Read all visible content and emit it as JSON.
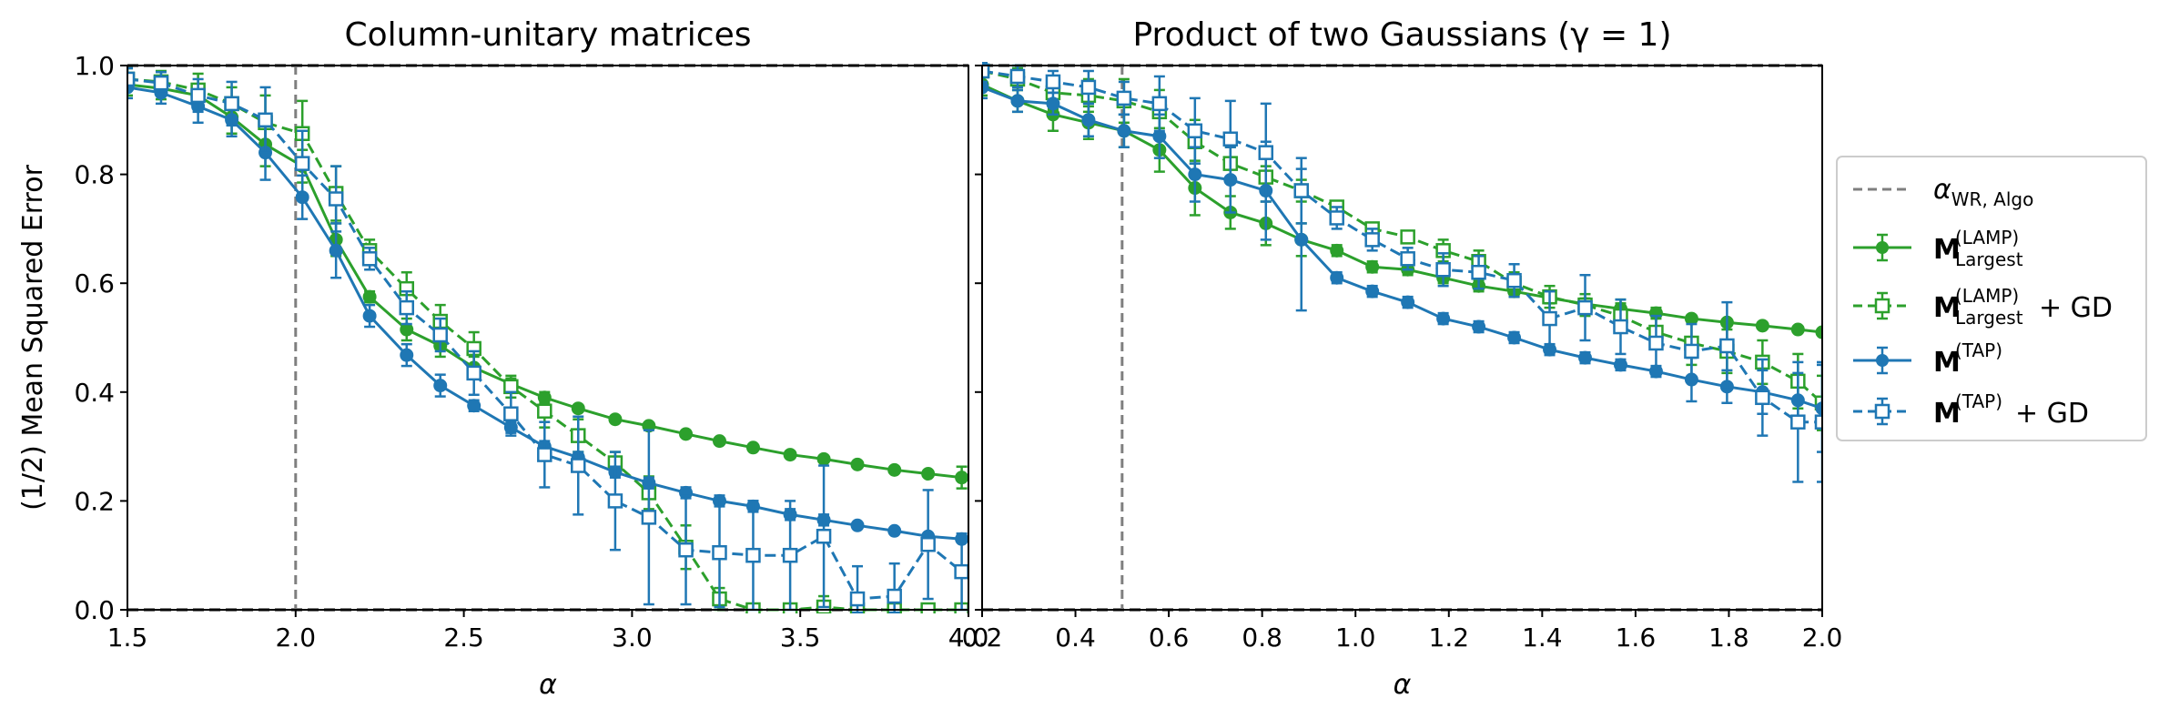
{
  "colors": {
    "lamp": "#2ca02c",
    "tap": "#1f77b4",
    "threshold": "#7f7f7f",
    "reference": "#000000"
  },
  "legend": {
    "threshold": {
      "main": "α",
      "sub": "WR, Algo"
    },
    "items": [
      {
        "series": "lamp",
        "base": "M",
        "sup": "(LAMP)",
        "sub": "Largest",
        "suffix": ""
      },
      {
        "series": "lamp_gd",
        "base": "M",
        "sup": "(LAMP)",
        "sub": "Largest",
        "suffix": " + GD"
      },
      {
        "series": "tap",
        "base": "M",
        "sup": "(TAP)",
        "sub": "",
        "suffix": ""
      },
      {
        "series": "tap_gd",
        "base": "M",
        "sup": "(TAP)",
        "sub": "",
        "suffix": " + GD"
      }
    ]
  },
  "chart_data": [
    {
      "type": "line",
      "title": "Column-unitary matrices",
      "xlabel": "α",
      "ylabel": "(1/2) Mean Squared Error",
      "xlim": [
        1.5,
        4.0
      ],
      "ylim": [
        0.0,
        1.0
      ],
      "xticks": [
        "1.5",
        "2.0",
        "2.5",
        "3.0",
        "3.5",
        "4.0"
      ],
      "xtick_values": [
        1.5,
        2.0,
        2.5,
        3.0,
        3.5,
        4.0
      ],
      "yticks": [
        "0.0",
        "0.2",
        "0.4",
        "0.6",
        "0.8",
        "1.0"
      ],
      "ytick_values": [
        0.0,
        0.2,
        0.4,
        0.6,
        0.8,
        1.0
      ],
      "threshold_alpha": 2.0,
      "reference_lines": [
        0.0,
        1.0
      ],
      "series": [
        {
          "id": "lamp",
          "style": "solid-circle",
          "x": [
            1.5,
            1.6,
            1.71,
            1.81,
            1.91,
            2.02,
            2.12,
            2.22,
            2.33,
            2.43,
            2.53,
            2.64,
            2.74,
            2.84,
            2.95,
            3.05,
            3.16,
            3.26,
            3.36,
            3.47,
            3.57,
            3.67,
            3.78,
            3.88,
            3.98
          ],
          "y": [
            0.965,
            0.958,
            0.945,
            0.905,
            0.855,
            0.815,
            0.68,
            0.575,
            0.515,
            0.485,
            0.445,
            0.415,
            0.39,
            0.37,
            0.35,
            0.338,
            0.323,
            0.31,
            0.298,
            0.285,
            0.277,
            0.267,
            0.257,
            0.25,
            0.243
          ],
          "err": [
            0.02,
            0.02,
            0.02,
            0.03,
            0.04,
            0.03,
            0.03,
            0.01,
            0.02,
            0.02,
            0.02,
            0.01,
            0.01,
            0.005,
            0.005,
            0.005,
            0.005,
            0.005,
            0.005,
            0.005,
            0.005,
            0.005,
            0.005,
            0.005,
            0.02
          ]
        },
        {
          "id": "lamp_gd",
          "style": "dashed-square",
          "x": [
            1.5,
            1.6,
            1.71,
            1.81,
            1.91,
            2.02,
            2.12,
            2.22,
            2.33,
            2.43,
            2.53,
            2.64,
            2.74,
            2.84,
            2.95,
            3.05,
            3.16,
            3.26,
            3.36,
            3.47,
            3.57,
            3.67,
            3.78,
            3.88,
            3.98
          ],
          "y": [
            0.975,
            0.97,
            0.955,
            0.93,
            0.895,
            0.875,
            0.765,
            0.66,
            0.59,
            0.53,
            0.48,
            0.41,
            0.365,
            0.32,
            0.27,
            0.215,
            0.115,
            0.02,
            0.0,
            0.0,
            0.005,
            0.0,
            0.0,
            0.0,
            0.0
          ],
          "err": [
            0.02,
            0.02,
            0.03,
            0.03,
            0.05,
            0.06,
            0.05,
            0.02,
            0.03,
            0.03,
            0.03,
            0.02,
            0.03,
            0.03,
            0.02,
            0.03,
            0.04,
            0.02,
            0.005,
            0.005,
            0.02,
            0.005,
            0.005,
            0.005,
            0.005
          ]
        },
        {
          "id": "tap",
          "style": "solid-circle",
          "x": [
            1.5,
            1.6,
            1.71,
            1.81,
            1.91,
            2.02,
            2.12,
            2.22,
            2.33,
            2.43,
            2.53,
            2.64,
            2.74,
            2.84,
            2.95,
            3.05,
            3.16,
            3.26,
            3.36,
            3.47,
            3.57,
            3.67,
            3.78,
            3.88,
            3.98
          ],
          "y": [
            0.96,
            0.95,
            0.925,
            0.9,
            0.84,
            0.758,
            0.66,
            0.54,
            0.468,
            0.412,
            0.375,
            0.335,
            0.3,
            0.28,
            0.253,
            0.233,
            0.215,
            0.2,
            0.19,
            0.175,
            0.165,
            0.155,
            0.145,
            0.135,
            0.13
          ],
          "err": [
            0.02,
            0.02,
            0.03,
            0.03,
            0.05,
            0.04,
            0.05,
            0.02,
            0.02,
            0.02,
            0.01,
            0.01,
            0.01,
            0.01,
            0.01,
            0.01,
            0.01,
            0.01,
            0.01,
            0.01,
            0.01,
            0.005,
            0.005,
            0.005,
            0.005
          ]
        },
        {
          "id": "tap_gd",
          "style": "dashed-square",
          "x": [
            1.5,
            1.6,
            1.71,
            1.81,
            1.91,
            2.02,
            2.12,
            2.22,
            2.33,
            2.43,
            2.53,
            2.64,
            2.74,
            2.84,
            2.95,
            3.05,
            3.16,
            3.26,
            3.36,
            3.47,
            3.57,
            3.67,
            3.78,
            3.88,
            3.98
          ],
          "y": [
            0.975,
            0.968,
            0.945,
            0.93,
            0.9,
            0.82,
            0.755,
            0.645,
            0.555,
            0.505,
            0.435,
            0.36,
            0.285,
            0.265,
            0.2,
            0.17,
            0.11,
            0.105,
            0.1,
            0.1,
            0.135,
            0.02,
            0.025,
            0.12,
            0.07
          ],
          "err": [
            0.02,
            0.02,
            0.03,
            0.04,
            0.06,
            0.06,
            0.06,
            0.02,
            0.03,
            0.03,
            0.04,
            0.04,
            0.06,
            0.09,
            0.09,
            0.16,
            0.1,
            0.1,
            0.1,
            0.1,
            0.13,
            0.06,
            0.06,
            0.1,
            0.07
          ]
        }
      ]
    },
    {
      "type": "line",
      "title": "Product of two Gaussians (γ = 1)",
      "xlabel": "α",
      "ylabel": "",
      "xlim": [
        0.2,
        2.0
      ],
      "ylim": [
        0.0,
        1.0
      ],
      "xticks": [
        "0.2",
        "0.4",
        "0.6",
        "0.8",
        "1.0",
        "1.2",
        "1.4",
        "1.6",
        "1.8",
        "2.0"
      ],
      "xtick_values": [
        0.2,
        0.4,
        0.6,
        0.8,
        1.0,
        1.2,
        1.4,
        1.6,
        1.8,
        2.0
      ],
      "yticks": [],
      "ytick_values": [
        0.0,
        0.2,
        0.4,
        0.6,
        0.8,
        1.0
      ],
      "threshold_alpha": 0.5,
      "reference_lines": [
        0.0,
        1.0
      ],
      "series": [
        {
          "id": "lamp",
          "style": "solid-circle",
          "x": [
            0.2,
            0.276,
            0.352,
            0.428,
            0.504,
            0.58,
            0.656,
            0.732,
            0.808,
            0.884,
            0.96,
            1.036,
            1.112,
            1.188,
            1.264,
            1.34,
            1.416,
            1.492,
            1.568,
            1.644,
            1.72,
            1.796,
            1.872,
            1.948,
            2.0
          ],
          "y": [
            0.965,
            0.935,
            0.91,
            0.895,
            0.88,
            0.845,
            0.775,
            0.73,
            0.71,
            0.68,
            0.66,
            0.63,
            0.625,
            0.61,
            0.595,
            0.585,
            0.573,
            0.562,
            0.553,
            0.545,
            0.535,
            0.528,
            0.522,
            0.515,
            0.51
          ],
          "err": [
            0.02,
            0.02,
            0.03,
            0.03,
            0.03,
            0.04,
            0.05,
            0.03,
            0.04,
            0.03,
            0.01,
            0.01,
            0.01,
            0.01,
            0.01,
            0.01,
            0.01,
            0.01,
            0.01,
            0.01,
            0.005,
            0.005,
            0.005,
            0.005,
            0.005
          ]
        },
        {
          "id": "lamp_gd",
          "style": "dashed-square",
          "x": [
            0.2,
            0.276,
            0.352,
            0.428,
            0.504,
            0.58,
            0.656,
            0.732,
            0.808,
            0.884,
            0.96,
            1.036,
            1.112,
            1.188,
            1.264,
            1.34,
            1.416,
            1.492,
            1.568,
            1.644,
            1.72,
            1.796,
            1.872,
            1.948,
            2.0
          ],
          "y": [
            0.99,
            0.975,
            0.95,
            0.945,
            0.935,
            0.915,
            0.86,
            0.82,
            0.795,
            0.77,
            0.74,
            0.7,
            0.685,
            0.66,
            0.64,
            0.6,
            0.575,
            0.56,
            0.54,
            0.51,
            0.49,
            0.475,
            0.455,
            0.42,
            0.38
          ],
          "err": [
            0.02,
            0.02,
            0.03,
            0.03,
            0.04,
            0.04,
            0.04,
            0.03,
            0.02,
            0.02,
            0.01,
            0.01,
            0.01,
            0.02,
            0.02,
            0.02,
            0.02,
            0.02,
            0.03,
            0.03,
            0.04,
            0.04,
            0.04,
            0.05,
            0.05
          ]
        },
        {
          "id": "tap",
          "style": "solid-circle",
          "x": [
            0.2,
            0.276,
            0.352,
            0.428,
            0.504,
            0.58,
            0.656,
            0.732,
            0.808,
            0.884,
            0.96,
            1.036,
            1.112,
            1.188,
            1.264,
            1.34,
            1.416,
            1.492,
            1.568,
            1.644,
            1.72,
            1.796,
            1.872,
            1.948,
            2.0
          ],
          "y": [
            0.96,
            0.935,
            0.93,
            0.9,
            0.88,
            0.87,
            0.8,
            0.79,
            0.77,
            0.68,
            0.61,
            0.585,
            0.565,
            0.535,
            0.52,
            0.5,
            0.478,
            0.463,
            0.45,
            0.438,
            0.423,
            0.41,
            0.4,
            0.385,
            0.37
          ],
          "err": [
            0.02,
            0.02,
            0.02,
            0.03,
            0.03,
            0.04,
            0.05,
            0.06,
            0.09,
            0.13,
            0.01,
            0.01,
            0.01,
            0.01,
            0.01,
            0.01,
            0.01,
            0.01,
            0.01,
            0.01,
            0.04,
            0.03,
            0.04,
            0.05,
            0.08
          ]
        },
        {
          "id": "tap_gd",
          "style": "dashed-square",
          "x": [
            0.2,
            0.276,
            0.352,
            0.428,
            0.504,
            0.58,
            0.656,
            0.732,
            0.808,
            0.884,
            0.96,
            1.036,
            1.112,
            1.188,
            1.264,
            1.34,
            1.416,
            1.492,
            1.568,
            1.644,
            1.72,
            1.796,
            1.872,
            1.948,
            2.0
          ],
          "y": [
            0.99,
            0.98,
            0.97,
            0.96,
            0.94,
            0.93,
            0.88,
            0.865,
            0.84,
            0.77,
            0.72,
            0.68,
            0.645,
            0.625,
            0.62,
            0.605,
            0.535,
            0.555,
            0.52,
            0.49,
            0.475,
            0.485,
            0.39,
            0.345,
            0.345
          ],
          "err": [
            0.02,
            0.02,
            0.02,
            0.03,
            0.03,
            0.05,
            0.06,
            0.07,
            0.09,
            0.06,
            0.02,
            0.02,
            0.02,
            0.03,
            0.03,
            0.03,
            0.05,
            0.06,
            0.05,
            0.05,
            0.05,
            0.08,
            0.07,
            0.11,
            0.11
          ]
        }
      ]
    }
  ]
}
